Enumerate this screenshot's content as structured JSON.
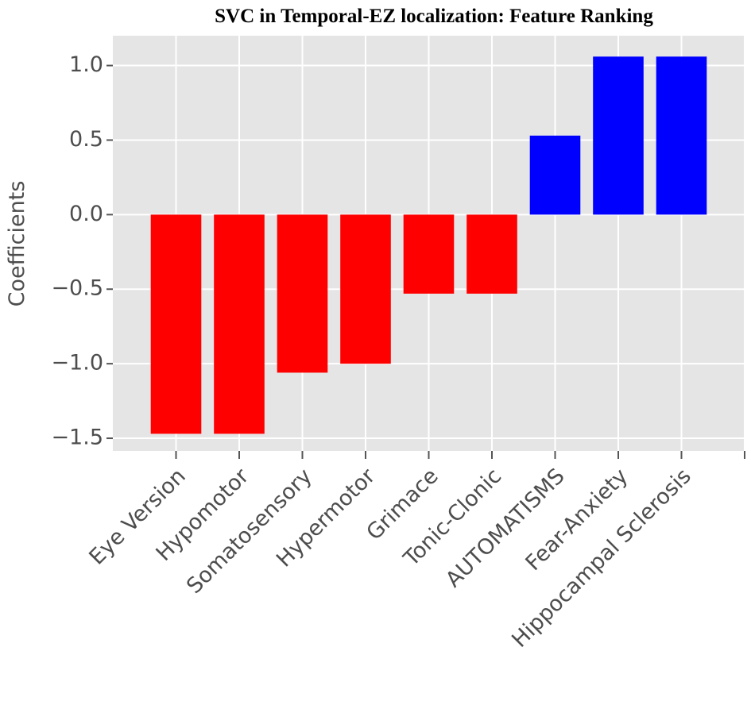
{
  "chart_data": {
    "type": "bar",
    "title": "SVC in Temporal-EZ localization: Feature Ranking",
    "y_label": "Coefficients",
    "categories": [
      "Eye Version",
      "Hypomotor",
      "Somatosensory",
      "Hypermotor",
      "Grimace",
      "Tonic-Clonic",
      "AUTOMATISMS",
      "Fear-Anxiety",
      "Hippocampal Sclerosis",
      null
    ],
    "values": [
      -1.47,
      -1.47,
      -1.06,
      -1.0,
      -0.53,
      -0.53,
      0.53,
      1.06,
      1.06,
      null
    ],
    "colors": [
      "#ff0000",
      "#ff0000",
      "#ff0000",
      "#ff0000",
      "#ff0000",
      "#ff0000",
      "#0000ff",
      "#0000ff",
      "#0000ff",
      null
    ],
    "ylim": [
      -1.585,
      1.2
    ],
    "yticks": [
      {
        "value": -1.5,
        "label": "−1.5"
      },
      {
        "value": -1.0,
        "label": "−1.0"
      },
      {
        "value": -0.5,
        "label": "−0.5"
      },
      {
        "value": 0.0,
        "label": "0.0"
      },
      {
        "value": 0.5,
        "label": "0.5"
      },
      {
        "value": 1.0,
        "label": "1.0"
      }
    ],
    "grid": true,
    "background": "#e5e5e5"
  }
}
